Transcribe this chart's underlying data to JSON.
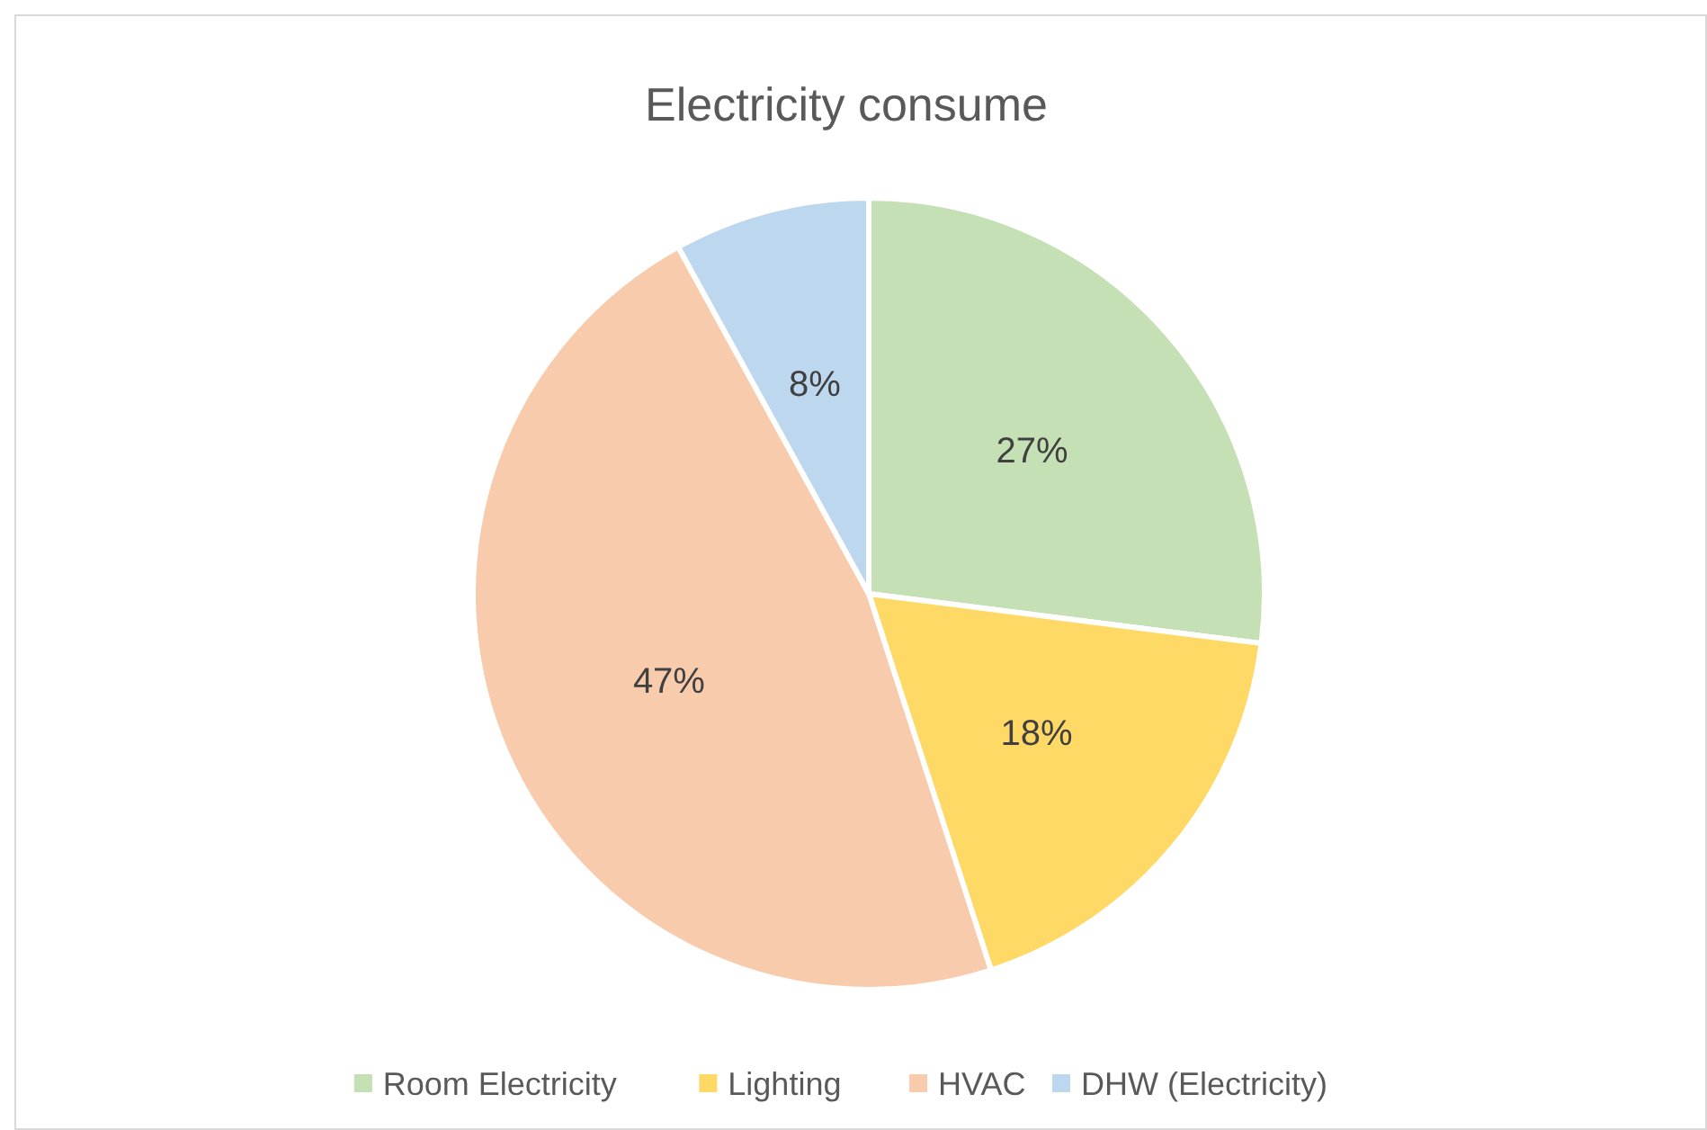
{
  "chart_data": {
    "type": "pie",
    "title": "Electricity consume",
    "categories": [
      "Room Electricity",
      "Lighting",
      "HVAC",
      "DHW (Electricity)"
    ],
    "values": [
      27,
      18,
      47,
      8
    ],
    "colors": [
      "#c5e0b4",
      "#ffd966",
      "#f8cbad",
      "#bdd7ee"
    ],
    "value_labels": [
      "27%",
      "18%",
      "47%",
      "8%"
    ],
    "legend": "bottom"
  }
}
